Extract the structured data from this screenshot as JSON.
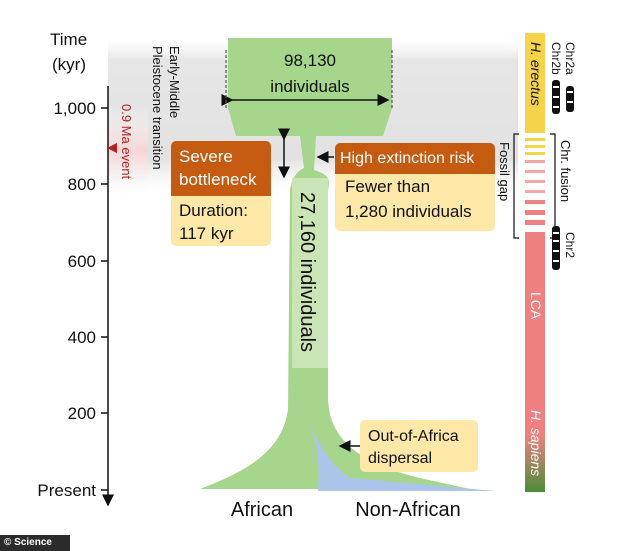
{
  "axis": {
    "title_line1": "Time",
    "title_line2": "(kyr)",
    "ticks": [
      "1,000",
      "800",
      "600",
      "400",
      "200",
      "Present"
    ]
  },
  "transition_label_line1": "Early-Middle",
  "transition_label_line2": "Pleistocene transition",
  "event_label": "0.9 Ma event",
  "ancestral": {
    "count": "98,130",
    "unit": "individuals"
  },
  "bottleneck_box": {
    "title_line1": "Severe",
    "title_line2": "bottleneck",
    "body_line1": "Duration:",
    "body_line2": "117 kyr"
  },
  "extinction_box": {
    "title": "High extinction risk",
    "body_line1": "Fewer than",
    "body_line2": "1,280 individuals"
  },
  "recovered_population": "27,160 individuals",
  "dispersal_box": {
    "line1": "Out-of-Africa",
    "line2": "dispersal"
  },
  "populations": {
    "african": "African",
    "non_african": "Non-African"
  },
  "right_bar": {
    "erectus_label": "H. erectus",
    "lca_label": "LCA",
    "sapiens_label": "H. sapiens",
    "fossil_gap_label": "Fossil gap",
    "chr2a": "Chr2a",
    "chr2b": "Chr2b",
    "fusion": "Chr. fusion",
    "chr2": "Chr2"
  },
  "credit": "© Science",
  "colors": {
    "green_population": "#a6d58c",
    "blue_population": "#a9c6ea",
    "orange_header": "#c55a11",
    "cream_box": "#fde8a8",
    "event_red": "#b22222",
    "lca_red": "#f08080",
    "erectus_yellow": "#f5d44a",
    "sapiens_green": "#4c8c3a"
  }
}
